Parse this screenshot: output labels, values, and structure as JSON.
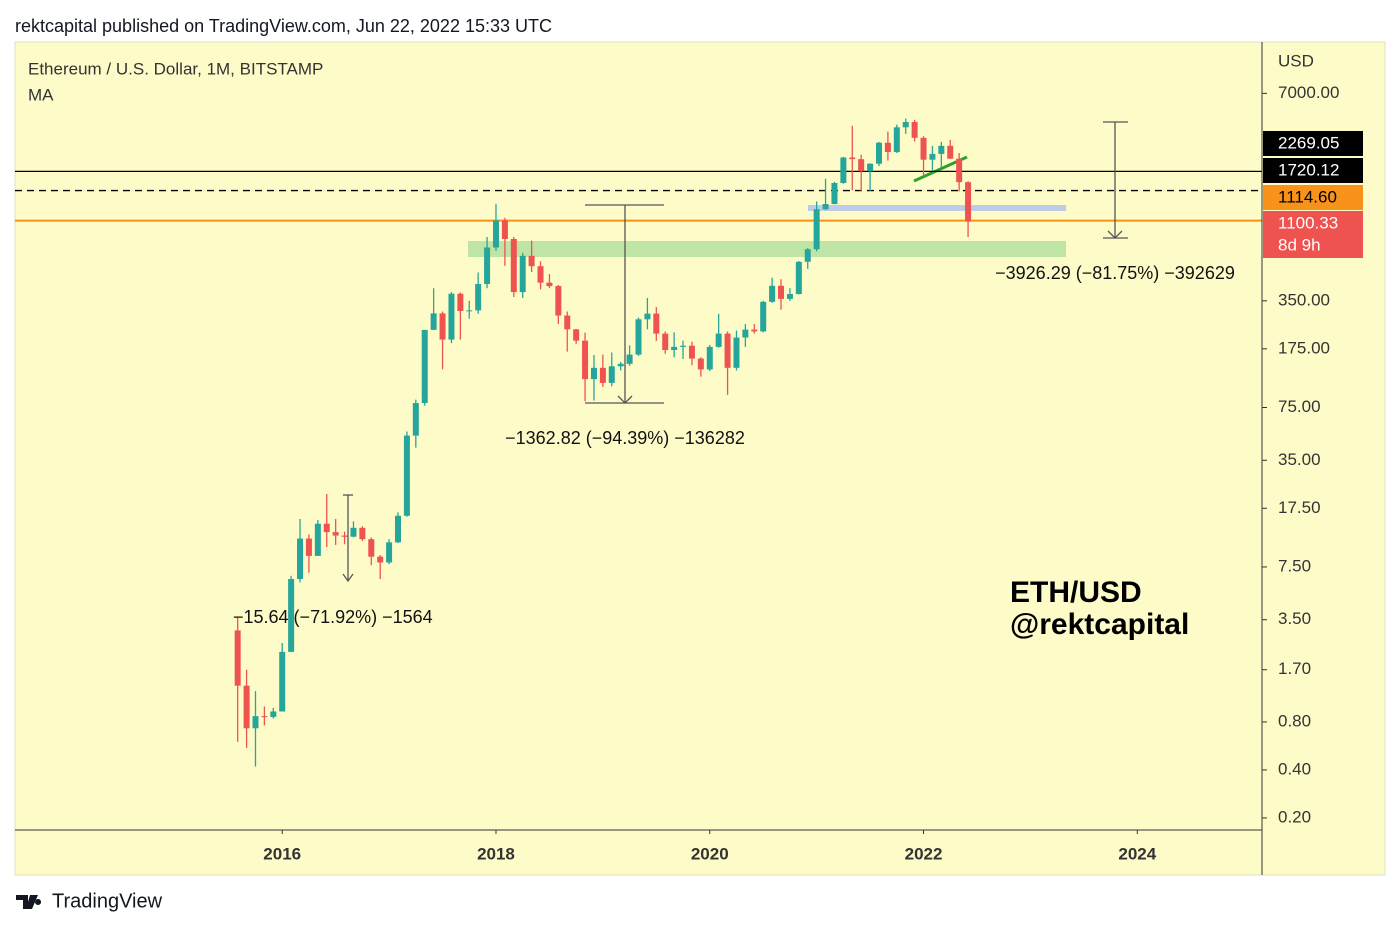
{
  "header": {
    "text": "rektcapital published on TradingView.com, Jun 22, 2022 15:33 UTC"
  },
  "chart_data": {
    "type": "candlestick",
    "title": "Ethereum / U.S. Dollar, 1M, BITSTAMP",
    "indicator": "MA",
    "currency": "USD",
    "log_scale": true,
    "up_color": "#26a69a",
    "down_color": "#ef5350",
    "x": [
      "2015-08",
      "2015-09",
      "2015-10",
      "2015-11",
      "2015-12",
      "2016-01",
      "2016-02",
      "2016-03",
      "2016-04",
      "2016-05",
      "2016-06",
      "2016-07",
      "2016-08",
      "2016-09",
      "2016-10",
      "2016-11",
      "2016-12",
      "2017-01",
      "2017-02",
      "2017-03",
      "2017-04",
      "2017-05",
      "2017-06",
      "2017-07",
      "2017-08",
      "2017-09",
      "2017-10",
      "2017-11",
      "2017-12",
      "2018-01",
      "2018-02",
      "2018-03",
      "2018-04",
      "2018-05",
      "2018-06",
      "2018-07",
      "2018-08",
      "2018-09",
      "2018-10",
      "2018-11",
      "2018-12",
      "2019-01",
      "2019-02",
      "2019-03",
      "2019-04",
      "2019-05",
      "2019-06",
      "2019-07",
      "2019-08",
      "2019-09",
      "2019-10",
      "2019-11",
      "2019-12",
      "2020-01",
      "2020-02",
      "2020-03",
      "2020-04",
      "2020-05",
      "2020-06",
      "2020-07",
      "2020-08",
      "2020-09",
      "2020-10",
      "2020-11",
      "2020-12",
      "2021-01",
      "2021-02",
      "2021-03",
      "2021-04",
      "2021-05",
      "2021-06",
      "2021-07",
      "2021-08",
      "2021-09",
      "2021-10",
      "2021-11",
      "2021-12",
      "2022-01",
      "2022-02",
      "2022-03",
      "2022-04",
      "2022-05",
      "2022-06"
    ],
    "open": [
      3.0,
      1.35,
      0.73,
      0.87,
      0.86,
      0.93,
      2.2,
      6.3,
      11.3,
      8.8,
      14.0,
      12.4,
      11.8,
      11.6,
      13.2,
      11.2,
      8.7,
      8.0,
      10.7,
      15.7,
      50,
      80,
      230,
      292,
      200,
      388,
      302,
      305,
      446,
      756,
      1118,
      855,
      397,
      670,
      577,
      455,
      433,
      283,
      232,
      197,
      113,
      133,
      107,
      136,
      141,
      161,
      268,
      291,
      218,
      172,
      180,
      183,
      152,
      130,
      180,
      218,
      133,
      206,
      231,
      225,
      345,
      435,
      360,
      386,
      615,
      737,
      1314,
      1417,
      1919,
      2773,
      2707,
      2275,
      2536,
      3433,
      3000,
      4288,
      4631,
      3683,
      2687,
      2921,
      3281,
      2727,
      1942
    ],
    "high": [
      3.6,
      1.7,
      1.25,
      1.0,
      0.98,
      2.5,
      6.6,
      15,
      12,
      14.8,
      21.5,
      15,
      12.5,
      14.5,
      13.5,
      11.5,
      8.9,
      11.2,
      16.5,
      53,
      84,
      230,
      420,
      300,
      397,
      395,
      350,
      527,
      880,
      1420,
      1160,
      880,
      700,
      835,
      620,
      515,
      440,
      300,
      233,
      221,
      160,
      161,
      166,
      145,
      184,
      275,
      365,
      320,
      225,
      222,
      197,
      194,
      155,
      185,
      290,
      225,
      228,
      250,
      250,
      350,
      488,
      478,
      420,
      622,
      750,
      1470,
      2040,
      1950,
      2800,
      4380,
      2890,
      2550,
      3470,
      4030,
      4460,
      4870,
      4780,
      3770,
      3280,
      3480,
      3580,
      2960,
      1970
    ],
    "low": [
      0.6,
      0.55,
      0.42,
      0.76,
      0.84,
      0.93,
      2.2,
      6.0,
      6.9,
      8.8,
      10.0,
      10.3,
      10.4,
      11.5,
      10.9,
      7.7,
      6.3,
      7.8,
      10.6,
      15.5,
      42,
      77,
      230,
      130,
      190,
      200,
      270,
      290,
      420,
      720,
      580,
      370,
      365,
      530,
      413,
      420,
      250,
      168,
      188,
      82,
      83,
      101,
      102,
      128,
      137,
      158,
      232,
      196,
      163,
      155,
      151,
      138,
      117,
      127,
      178,
      90,
      128,
      180,
      218,
      222,
      340,
      308,
      350,
      384,
      555,
      715,
      1300,
      1410,
      1900,
      1730,
      1700,
      1710,
      2450,
      2650,
      2960,
      3900,
      3500,
      2160,
      2300,
      2400,
      2720,
      1700,
      880
    ],
    "close": [
      1.35,
      0.73,
      0.87,
      0.86,
      0.93,
      2.2,
      6.3,
      11.3,
      8.8,
      14.0,
      12.4,
      11.8,
      11.6,
      13.2,
      11.2,
      8.7,
      8.0,
      10.7,
      15.7,
      50,
      80,
      230,
      292,
      200,
      388,
      302,
      305,
      446,
      756,
      1118,
      855,
      397,
      670,
      577,
      455,
      433,
      283,
      232,
      197,
      113,
      133,
      107,
      136,
      141,
      161,
      268,
      291,
      218,
      172,
      180,
      183,
      152,
      130,
      180,
      218,
      133,
      206,
      231,
      225,
      345,
      435,
      360,
      386,
      615,
      737,
      1314,
      1417,
      1919,
      2773,
      2707,
      2275,
      2536,
      3433,
      3000,
      4288,
      4631,
      3683,
      2687,
      2921,
      3281,
      2727,
      1942,
      1100.33
    ],
    "xlim": [
      "2013-07",
      "2025-03"
    ],
    "xticks": [
      {
        "value": "2016-01",
        "label": "2016"
      },
      {
        "value": "2018-01",
        "label": "2018"
      },
      {
        "value": "2020-01",
        "label": "2020"
      },
      {
        "value": "2022-01",
        "label": "2022"
      },
      {
        "value": "2024-01",
        "label": "2024"
      }
    ],
    "ylim": [
      0.168,
      14700
    ],
    "yticks": [
      {
        "value": 7000,
        "label": "7000.00"
      },
      {
        "value": 350,
        "label": "350.00"
      },
      {
        "value": 175,
        "label": "175.00"
      },
      {
        "value": 75,
        "label": "75.00"
      },
      {
        "value": 35,
        "label": "35.00"
      },
      {
        "value": 17.5,
        "label": "17.50"
      },
      {
        "value": 7.5,
        "label": "7.50"
      },
      {
        "value": 3.5,
        "label": "3.50"
      },
      {
        "value": 1.7,
        "label": "1.70"
      },
      {
        "value": 0.8,
        "label": "0.80"
      },
      {
        "value": 0.4,
        "label": "0.40"
      },
      {
        "value": 0.2,
        "label": "0.20"
      }
    ],
    "price_lines": [
      {
        "value": 2269.05,
        "color": "#000000",
        "style": "solid"
      },
      {
        "value": 1720.12,
        "color": "#000000",
        "style": "dashed"
      },
      {
        "value": {
          "value": 1114.6,
          "label": "1114.60"
        },
        "color": "#f7931a",
        "style": "solid"
      },
      {
        "value": 1100.33,
        "color": "#ef5350",
        "countdown": "8d 9h"
      }
    ],
    "annotations": [
      "−15.64 (−71.92%) −1564",
      "−1362.82 (−94.39%) −136282",
      "−3926.29 (−81.75%) −392629"
    ],
    "watermark": [
      "ETH/USD",
      "@rektcapital"
    ]
  },
  "footer": {
    "brand": "TradingView"
  }
}
